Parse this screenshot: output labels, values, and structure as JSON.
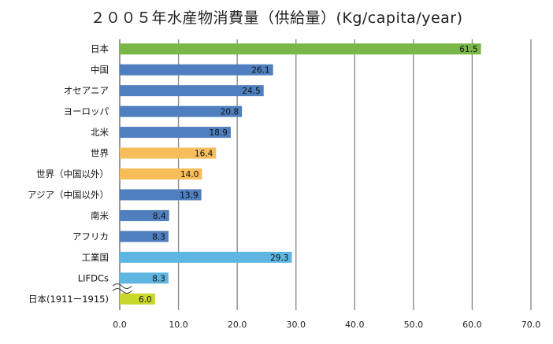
{
  "chart_data": {
    "type": "bar",
    "orientation": "horizontal",
    "title": "２００５年水産物消費量（供給量）(Kg/capita/year)",
    "xlim": [
      0,
      70
    ],
    "xticks": [
      "0.0",
      "10.0",
      "20.0",
      "30.0",
      "40.0",
      "50.0",
      "60.0",
      "70.0"
    ],
    "grid": true,
    "categories": [
      "日本",
      "中国",
      "オセアニア",
      "ヨーロッパ",
      "北米",
      "世界",
      "世界（中国以外）",
      "アジア（中国以外）",
      "南米",
      "アフリカ",
      "工業国",
      "LIFDCs",
      "日本(1911ー1915)"
    ],
    "values": [
      61.5,
      26.1,
      24.5,
      20.8,
      18.9,
      16.4,
      14.0,
      13.9,
      8.4,
      8.3,
      29.3,
      8.3,
      6.0
    ],
    "value_labels": [
      "61.5",
      "26.1",
      "24.5",
      "20.8",
      "18.9",
      "16.4",
      "14.0",
      "13.9",
      "8.4",
      "8.3",
      "29.3",
      "8.3",
      "6.0"
    ],
    "colors": [
      "#7ab648",
      "#4f7fbf",
      "#4f7fbf",
      "#4f7fbf",
      "#4f7fbf",
      "#f7bd5b",
      "#f7bd5b",
      "#4f7fbf",
      "#4f7fbf",
      "#4f7fbf",
      "#5fb6e0",
      "#5fb6e0",
      "#c8d72b"
    ]
  }
}
